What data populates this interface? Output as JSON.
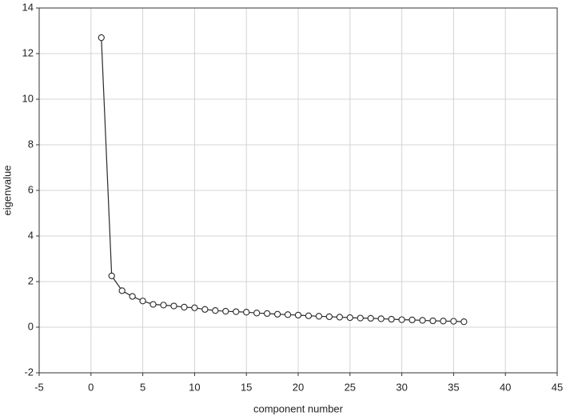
{
  "chart_data": {
    "type": "line",
    "x_label": "component number",
    "y_label": "eigenvalue",
    "x": [
      1,
      2,
      3,
      4,
      5,
      6,
      7,
      8,
      9,
      10,
      11,
      12,
      13,
      14,
      15,
      16,
      17,
      18,
      19,
      20,
      21,
      22,
      23,
      24,
      25,
      26,
      27,
      28,
      29,
      30,
      31,
      32,
      33,
      34,
      35,
      36
    ],
    "series": [
      {
        "color": "#2a2a2a",
        "values": [
          12.7,
          2.25,
          1.6,
          1.35,
          1.15,
          1.0,
          0.97,
          0.93,
          0.88,
          0.85,
          0.78,
          0.73,
          0.7,
          0.68,
          0.66,
          0.62,
          0.6,
          0.57,
          0.55,
          0.53,
          0.5,
          0.48,
          0.46,
          0.44,
          0.42,
          0.4,
          0.39,
          0.37,
          0.35,
          0.33,
          0.32,
          0.3,
          0.28,
          0.27,
          0.26,
          0.24
        ]
      }
    ],
    "xlim": [
      -5,
      45
    ],
    "xticks": [
      -5,
      0,
      5,
      10,
      15,
      20,
      25,
      30,
      35,
      40,
      45
    ],
    "ylim": [
      -2,
      14
    ],
    "yticks": [
      -2,
      0,
      2,
      4,
      6,
      8,
      10,
      12,
      14
    ],
    "grid": true,
    "marker": "open-circle"
  }
}
